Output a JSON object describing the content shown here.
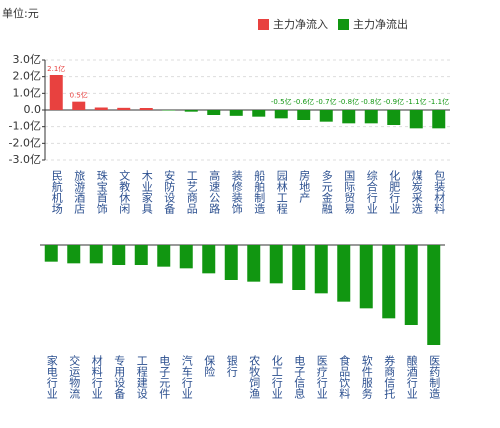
{
  "chart_data": [
    {
      "type": "bar",
      "unit": "单位:元",
      "legend": [
        {
          "name": "主力净流入",
          "color": "#e8413f"
        },
        {
          "name": "主力净流出",
          "color": "#119611"
        }
      ],
      "categories": [
        "民航机场",
        "旅游酒店",
        "珠宝首饰",
        "文教休闲",
        "木业家具",
        "安防设备",
        "工艺商品",
        "高速公路",
        "装修装饰",
        "船舶制造",
        "园林工程",
        "房地产",
        "多元金融",
        "国际贸易",
        "综合行业",
        "化肥行业",
        "煤炭采选",
        "包装材料"
      ],
      "values": [
        2.1,
        0.5,
        0.15,
        0.13,
        0.12,
        -0.03,
        -0.1,
        -0.3,
        -0.35,
        -0.4,
        -0.5,
        -0.6,
        -0.7,
        -0.8,
        -0.8,
        -0.9,
        -1.1,
        -1.1
      ],
      "value_labels": [
        "2.1亿",
        "0.5亿",
        null,
        null,
        null,
        null,
        null,
        null,
        null,
        null,
        "-0.5亿",
        "-0.6亿",
        "-0.7亿",
        "-0.8亿",
        "-0.8亿",
        "-0.9亿",
        "-1.1亿",
        "-1.1亿"
      ],
      "ylim": [
        -3,
        3
      ],
      "yticks": [
        {
          "value": 3,
          "label": "3.0亿"
        },
        {
          "value": 2,
          "label": "2.0亿"
        },
        {
          "value": 1,
          "label": "1.0亿"
        },
        {
          "value": 0,
          "label": "0.0"
        },
        {
          "value": -1,
          "label": "-1.0亿"
        },
        {
          "value": -2,
          "label": "-2.0亿"
        },
        {
          "value": -3,
          "label": "-3.0亿"
        }
      ],
      "grid": true
    },
    {
      "type": "bar",
      "categories": [
        "家电行业",
        "交运物流",
        "材料行业",
        "专用设备",
        "工程建设",
        "电子元件",
        "汽车行业",
        "保险",
        "银行",
        "农牧饲渔",
        "化工行业",
        "电子信息",
        "医疗行业",
        "食品饮料",
        "软件服务",
        "券商信托",
        "酿酒行业",
        "医药制造"
      ],
      "values": [
        -1.0,
        -1.1,
        -1.1,
        -1.2,
        -1.2,
        -1.3,
        -1.4,
        -1.7,
        -2.1,
        -2.2,
        -2.3,
        -2.7,
        -2.9,
        -3.4,
        -3.8,
        -4.4,
        -4.8,
        -6.0
      ],
      "ylim": [
        -6,
        0
      ]
    }
  ]
}
